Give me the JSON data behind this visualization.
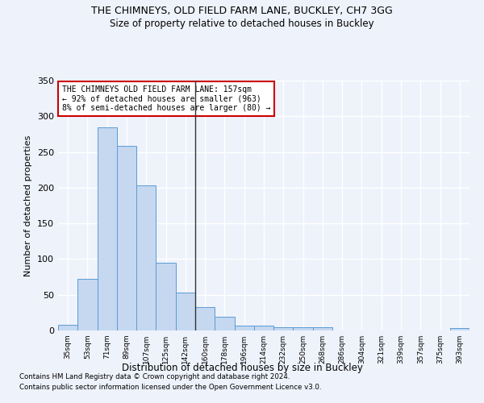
{
  "title1": "THE CHIMNEYS, OLD FIELD FARM LANE, BUCKLEY, CH7 3GG",
  "title2": "Size of property relative to detached houses in Buckley",
  "xlabel": "Distribution of detached houses by size in Buckley",
  "ylabel": "Number of detached properties",
  "categories": [
    "35sqm",
    "53sqm",
    "71sqm",
    "89sqm",
    "107sqm",
    "125sqm",
    "142sqm",
    "160sqm",
    "178sqm",
    "196sqm",
    "214sqm",
    "232sqm",
    "250sqm",
    "268sqm",
    "286sqm",
    "304sqm",
    "321sqm",
    "339sqm",
    "357sqm",
    "375sqm",
    "393sqm"
  ],
  "values": [
    8,
    72,
    285,
    258,
    203,
    95,
    53,
    33,
    19,
    7,
    7,
    4,
    5,
    4,
    0,
    0,
    0,
    0,
    0,
    0,
    3
  ],
  "bar_color": "#c5d8f0",
  "bar_edge_color": "#5b9bd5",
  "vline_x": 6.5,
  "vline_color": "#333333",
  "annotation_text": "THE CHIMNEYS OLD FIELD FARM LANE: 157sqm\n← 92% of detached houses are smaller (963)\n8% of semi-detached houses are larger (80) →",
  "annotation_box_color": "#ffffff",
  "annotation_box_edge": "#cc0000",
  "footnote1": "Contains HM Land Registry data © Crown copyright and database right 2024.",
  "footnote2": "Contains public sector information licensed under the Open Government Licence v3.0.",
  "bg_color": "#eef2fb",
  "grid_color": "#ffffff",
  "ylim": [
    0,
    350
  ],
  "yticks": [
    0,
    50,
    100,
    150,
    200,
    250,
    300,
    350
  ]
}
